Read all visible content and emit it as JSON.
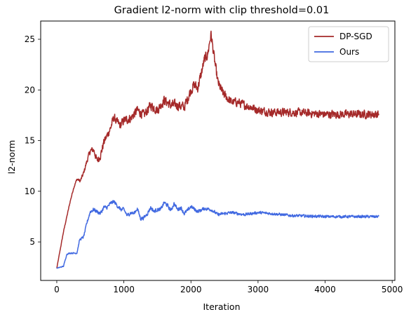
{
  "chart_data": {
    "type": "line",
    "title": "Gradient l2-norm with clip threshold=0.01",
    "xlabel": "Iteration",
    "ylabel": "l2-norm",
    "xlim": [
      -240,
      5040
    ],
    "ylim": [
      1.2,
      26.8
    ],
    "xticks": [
      0,
      1000,
      2000,
      3000,
      4000,
      5000
    ],
    "xtick_labels": [
      "0",
      "1000",
      "2000",
      "3000",
      "4000",
      "5000"
    ],
    "yticks": [
      5,
      10,
      15,
      20,
      25
    ],
    "ytick_labels": [
      "5",
      "10",
      "15",
      "20",
      "25"
    ],
    "grid": false,
    "legend_position": "top-right",
    "noise_note_hidden": true,
    "series": [
      {
        "name": "DP-SGD",
        "color": "#a52a2a",
        "noise_amplitude": [
          [
            0,
            0.05
          ],
          [
            300,
            0.15
          ],
          [
            600,
            0.5
          ],
          [
            1000,
            0.6
          ],
          [
            2000,
            0.7
          ],
          [
            2300,
            0.7
          ],
          [
            2500,
            0.6
          ],
          [
            3000,
            0.55
          ],
          [
            4800,
            0.55
          ]
        ],
        "x": [
          0,
          50,
          100,
          150,
          200,
          250,
          300,
          350,
          400,
          450,
          500,
          550,
          600,
          650,
          700,
          750,
          800,
          850,
          900,
          950,
          1000,
          1100,
          1200,
          1300,
          1400,
          1500,
          1600,
          1700,
          1800,
          1900,
          2000,
          2050,
          2100,
          2150,
          2200,
          2250,
          2280,
          2300,
          2350,
          2400,
          2450,
          2500,
          2600,
          2700,
          2800,
          2900,
          3000,
          3200,
          3500,
          4000,
          4500,
          4800
        ],
        "y": [
          2.4,
          4.2,
          6.0,
          7.5,
          9.0,
          10.3,
          11.2,
          11.0,
          11.8,
          13.0,
          14.0,
          14.1,
          13.0,
          13.5,
          14.8,
          15.5,
          16.2,
          17.3,
          16.8,
          16.5,
          17.0,
          17.2,
          18.0,
          17.5,
          18.5,
          18.0,
          19.0,
          18.5,
          18.5,
          18.3,
          20.0,
          20.5,
          20.2,
          21.5,
          23.0,
          23.5,
          24.8,
          25.5,
          23.0,
          20.8,
          20.0,
          19.5,
          18.8,
          18.8,
          18.5,
          18.3,
          18.0,
          17.8,
          17.8,
          17.6,
          17.6,
          17.6
        ]
      },
      {
        "name": "Ours",
        "color": "#4169e1",
        "noise_amplitude": [
          [
            0,
            0.05
          ],
          [
            300,
            0.1
          ],
          [
            500,
            0.25
          ],
          [
            2000,
            0.25
          ],
          [
            2400,
            0.2
          ],
          [
            3000,
            0.18
          ],
          [
            4800,
            0.18
          ]
        ],
        "x": [
          0,
          100,
          150,
          200,
          300,
          340,
          400,
          450,
          500,
          550,
          600,
          650,
          700,
          750,
          800,
          850,
          900,
          950,
          1000,
          1050,
          1100,
          1150,
          1200,
          1250,
          1300,
          1350,
          1400,
          1450,
          1500,
          1550,
          1600,
          1650,
          1700,
          1750,
          1800,
          1850,
          1900,
          1950,
          2000,
          2100,
          2200,
          2300,
          2400,
          2600,
          2800,
          3000,
          3200,
          3500,
          4000,
          4500,
          4800
        ],
        "y": [
          2.4,
          2.6,
          3.8,
          3.9,
          3.9,
          5.2,
          5.5,
          6.9,
          8.0,
          8.2,
          8.0,
          7.8,
          8.4,
          8.4,
          8.8,
          9.0,
          8.6,
          8.2,
          8.2,
          7.6,
          7.9,
          7.8,
          8.3,
          7.3,
          7.4,
          7.8,
          8.4,
          8.0,
          8.2,
          8.2,
          8.9,
          8.6,
          8.1,
          8.8,
          8.2,
          8.4,
          7.8,
          8.1,
          8.5,
          8.0,
          8.3,
          8.2,
          7.7,
          7.9,
          7.7,
          7.9,
          7.8,
          7.6,
          7.5,
          7.5,
          7.5
        ]
      }
    ]
  }
}
